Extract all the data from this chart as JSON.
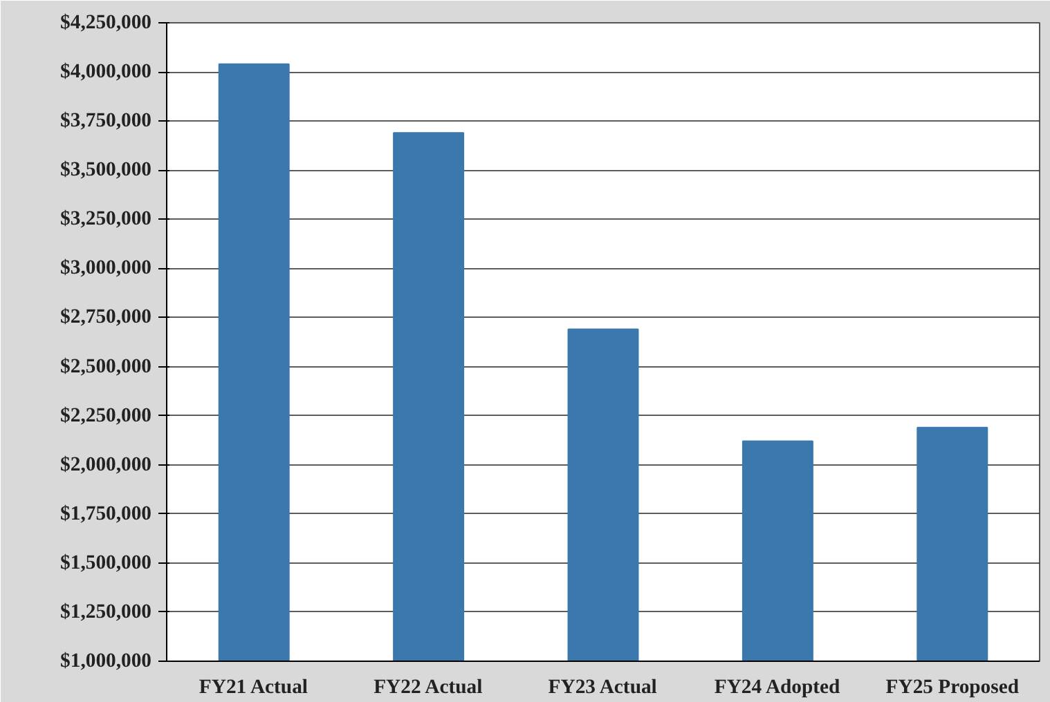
{
  "chart_data": {
    "type": "bar",
    "categories": [
      "FY21 Actual",
      "FY22 Actual",
      "FY23 Actual",
      "FY24 Adopted",
      "FY25 Proposed"
    ],
    "values": [
      4040000,
      3690000,
      2690000,
      2120000,
      2190000
    ],
    "color": "#3a78ad",
    "ylim": [
      1000000,
      4250000
    ],
    "yticks": [
      {
        "value": 1000000,
        "label": "$1,000,000"
      },
      {
        "value": 1250000,
        "label": "$1,250,000"
      },
      {
        "value": 1500000,
        "label": "$1,500,000"
      },
      {
        "value": 1750000,
        "label": "$1,750,000"
      },
      {
        "value": 2000000,
        "label": "$2,000,000"
      },
      {
        "value": 2250000,
        "label": "$2,250,000"
      },
      {
        "value": 2500000,
        "label": "$2,500,000"
      },
      {
        "value": 2750000,
        "label": "$2,750,000"
      },
      {
        "value": 3000000,
        "label": "$3,000,000"
      },
      {
        "value": 3250000,
        "label": "$3,250,000"
      },
      {
        "value": 3500000,
        "label": "$3,500,000"
      },
      {
        "value": 3750000,
        "label": "$3,750,000"
      },
      {
        "value": 4000000,
        "label": "$4,000,000"
      },
      {
        "value": 4250000,
        "label": "$4,250,000"
      }
    ],
    "grid": "y"
  }
}
